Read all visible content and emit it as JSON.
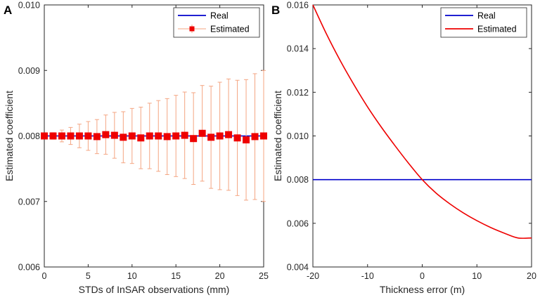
{
  "chart_data": [
    {
      "panel_label": "A",
      "type": "scatter",
      "xlabel": "STDs of InSAR observations (mm)",
      "ylabel": "Estimated coefficient",
      "xlim": [
        0,
        25
      ],
      "ylim": [
        0.006,
        0.01
      ],
      "xticks": [
        0,
        5,
        10,
        15,
        20,
        25
      ],
      "xtick_labels": [
        "0",
        "5",
        "10",
        "15",
        "20",
        "25"
      ],
      "yticks": [
        0.006,
        0.007,
        0.008,
        0.009,
        0.01
      ],
      "ytick_labels": [
        "0.006",
        "0.007",
        "0.008",
        "0.009",
        "0.010"
      ],
      "grid": false,
      "legend_position": "top-right",
      "series": [
        {
          "name": "Real",
          "kind": "line",
          "color": "#0000cc",
          "x": [
            0,
            25
          ],
          "y": [
            0.008,
            0.008
          ]
        },
        {
          "name": "Estimated",
          "kind": "errorbar",
          "color": "#ee0000",
          "errorbar_color": "#f4a582",
          "x": [
            0,
            1,
            2,
            3,
            4,
            5,
            6,
            7,
            8,
            9,
            10,
            11,
            12,
            13,
            14,
            15,
            16,
            17,
            18,
            19,
            20,
            21,
            22,
            23,
            24,
            25
          ],
          "y": [
            0.008,
            0.008,
            0.008,
            0.008,
            0.008,
            0.008,
            0.00799,
            0.00802,
            0.00801,
            0.00798,
            0.008,
            0.00797,
            0.008,
            0.008,
            0.00799,
            0.008,
            0.00801,
            0.00796,
            0.00804,
            0.00798,
            0.008,
            0.00802,
            0.00797,
            0.00794,
            0.00799,
            0.008
          ],
          "err": [
            0.0,
            5e-05,
            9e-05,
            0.00013,
            0.00018,
            0.00022,
            0.00026,
            0.0003,
            0.00035,
            0.00039,
            0.00042,
            0.00047,
            0.0005,
            0.00054,
            0.00058,
            0.00062,
            0.00066,
            0.0007,
            0.00073,
            0.00078,
            0.00082,
            0.00085,
            0.00088,
            0.00092,
            0.00096,
            0.001
          ]
        }
      ]
    },
    {
      "panel_label": "B",
      "type": "line",
      "xlabel": "Thickness error (m)",
      "ylabel": "Estimated coefficient",
      "xlim": [
        -20,
        20
      ],
      "ylim": [
        0.004,
        0.016
      ],
      "xticks": [
        -20,
        -10,
        0,
        10,
        20
      ],
      "xtick_labels": [
        "-20",
        "-10",
        "0",
        "10",
        "20"
      ],
      "yticks": [
        0.004,
        0.006,
        0.008,
        0.01,
        0.012,
        0.014,
        0.016
      ],
      "ytick_labels": [
        "0.004",
        "0.006",
        "0.008",
        "0.010",
        "0.012",
        "0.014",
        "0.016"
      ],
      "grid": false,
      "legend_position": "top-right",
      "series": [
        {
          "name": "Real",
          "color": "#0000cc",
          "x": [
            -20,
            20
          ],
          "y": [
            0.008,
            0.008
          ]
        },
        {
          "name": "Estimated",
          "color": "#ee0000",
          "x": [
            -20,
            -17.5,
            -15,
            -12.5,
            -10,
            -7.5,
            -5,
            -2.5,
            0,
            2.5,
            5,
            7.5,
            10,
            12.5,
            15,
            17.5,
            20
          ],
          "y": [
            0.016,
            0.01466,
            0.01345,
            0.01235,
            0.01133,
            0.01041,
            0.00956,
            0.00875,
            0.008,
            0.00739,
            0.0069,
            0.00648,
            0.00612,
            0.00581,
            0.00555,
            0.00533,
            0.00533
          ]
        }
      ]
    }
  ]
}
